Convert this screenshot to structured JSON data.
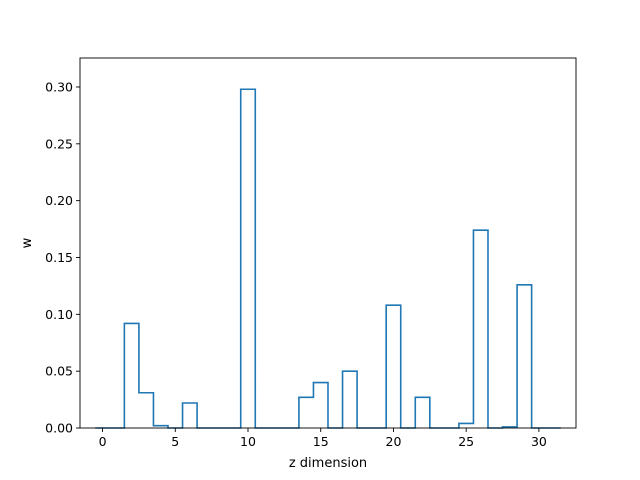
{
  "chart_data": {
    "type": "bar",
    "style": "step-outline histogram",
    "title": "",
    "xlabel": "z dimension",
    "ylabel": "w",
    "xlim": [
      -1.55,
      32.55
    ],
    "ylim": [
      0,
      0.3255
    ],
    "x_ticks": [
      0,
      5,
      10,
      15,
      20,
      25,
      30
    ],
    "y_ticks": [
      0.0,
      0.05,
      0.1,
      0.15,
      0.2,
      0.25,
      0.3
    ],
    "y_tick_labels": [
      "0.00",
      "0.05",
      "0.10",
      "0.15",
      "0.20",
      "0.25",
      "0.30"
    ],
    "bin_width": 1,
    "categories": [
      0,
      1,
      2,
      3,
      4,
      5,
      6,
      7,
      8,
      9,
      10,
      11,
      12,
      13,
      14,
      15,
      16,
      17,
      18,
      19,
      20,
      21,
      22,
      23,
      24,
      25,
      26,
      27,
      28,
      29,
      30,
      31
    ],
    "values": [
      0,
      0,
      0.092,
      0.031,
      0.002,
      0,
      0.022,
      0,
      0,
      0,
      0.298,
      0,
      0,
      0,
      0.027,
      0.04,
      0,
      0.05,
      0,
      0,
      0.108,
      0,
      0.027,
      0,
      0,
      0.004,
      0.174,
      0,
      0.001,
      0.126,
      0,
      0
    ],
    "line_color": "#1f77b4",
    "grid": false,
    "legend": "none"
  }
}
